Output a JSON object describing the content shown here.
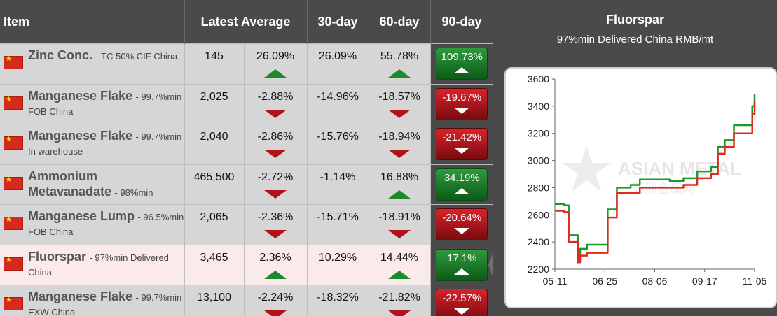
{
  "table": {
    "headers": {
      "item": "Item",
      "latest": "Latest Average",
      "d30": "30-day",
      "d60": "60-day",
      "d90": "90-day"
    },
    "rows": [
      {
        "name": "Zinc Conc.",
        "detail": "- TC 50% CIF China",
        "latest": "145",
        "change": "26.09%",
        "change_dir": "up",
        "d30": "26.09%",
        "d60": "55.78%",
        "d60_dir": "up",
        "d90": "109.73%",
        "d90_dir": "up"
      },
      {
        "name": "Manganese Flake",
        "detail": "- 99.7%min FOB China",
        "latest": "2,025",
        "change": "-2.88%",
        "change_dir": "down",
        "d30": "-14.96%",
        "d60": "-18.57%",
        "d60_dir": "down",
        "d90": "-19.67%",
        "d90_dir": "down"
      },
      {
        "name": "Manganese Flake",
        "detail": "- 99.7%min In warehouse",
        "latest": "2,040",
        "change": "-2.86%",
        "change_dir": "down",
        "d30": "-15.76%",
        "d60": "-18.94%",
        "d60_dir": "down",
        "d90": "-21.42%",
        "d90_dir": "down"
      },
      {
        "name": "Ammonium Metavanadate",
        "detail": "- 98%min",
        "latest": "465,500",
        "change": "-2.72%",
        "change_dir": "down",
        "d30": "-1.14%",
        "d60": "16.88%",
        "d60_dir": "up",
        "d90": "34.19%",
        "d90_dir": "up"
      },
      {
        "name": "Manganese Lump",
        "detail": "- 96.5%min FOB China",
        "latest": "2,065",
        "change": "-2.36%",
        "change_dir": "down",
        "d30": "-15.71%",
        "d60": "-18.91%",
        "d60_dir": "down",
        "d90": "-20.64%",
        "d90_dir": "down"
      },
      {
        "name": "Fluorspar",
        "detail": "- 97%min Delivered China",
        "latest": "3,465",
        "change": "2.36%",
        "change_dir": "up",
        "d30": "10.29%",
        "d60": "14.44%",
        "d60_dir": "up",
        "d90": "17.1%",
        "d90_dir": "up",
        "selected": true
      },
      {
        "name": "Manganese Flake",
        "detail": "- 99.7%min EXW China",
        "latest": "13,100",
        "change": "-2.24%",
        "change_dir": "down",
        "d30": "-18.32%",
        "d60": "-21.82%",
        "d60_dir": "down",
        "d90": "-22.57%",
        "d90_dir": "down"
      }
    ]
  },
  "panel": {
    "title": "Fluorspar",
    "subtitle": "97%min Delivered China RMB/mt"
  },
  "chart_data": {
    "type": "line",
    "title": "Fluorspar",
    "subtitle": "97%min Delivered China RMB/mt",
    "x_ticks": [
      "05-11",
      "06-25",
      "08-06",
      "09-17",
      "11-05"
    ],
    "ylim": [
      2200,
      3600
    ],
    "y_ticks": [
      2200,
      2400,
      2600,
      2800,
      3000,
      3200,
      3400,
      3600
    ],
    "grid": false,
    "watermark": "ASIAN METAL 亚洲金属网",
    "series": [
      {
        "color": "#1a9a2a",
        "x": [
          0,
          4,
          6,
          10,
          11,
          14,
          18,
          23,
          27,
          33,
          37,
          44,
          50,
          56,
          62,
          68,
          71,
          74,
          78,
          83,
          86,
          87
        ],
        "y": [
          2680,
          2670,
          2450,
          2300,
          2350,
          2380,
          2380,
          2640,
          2800,
          2820,
          2860,
          2860,
          2850,
          2870,
          2920,
          2950,
          3100,
          3150,
          3260,
          3260,
          3400,
          3490
        ]
      },
      {
        "color": "#e02a1e",
        "x": [
          0,
          4,
          6,
          10,
          11,
          14,
          18,
          23,
          27,
          33,
          37,
          44,
          50,
          56,
          62,
          68,
          71,
          74,
          78,
          83,
          86,
          87
        ],
        "y": [
          2630,
          2620,
          2400,
          2250,
          2300,
          2320,
          2320,
          2580,
          2760,
          2760,
          2800,
          2800,
          2800,
          2820,
          2870,
          2900,
          3050,
          3100,
          3200,
          3200,
          3340,
          3440
        ]
      }
    ]
  }
}
